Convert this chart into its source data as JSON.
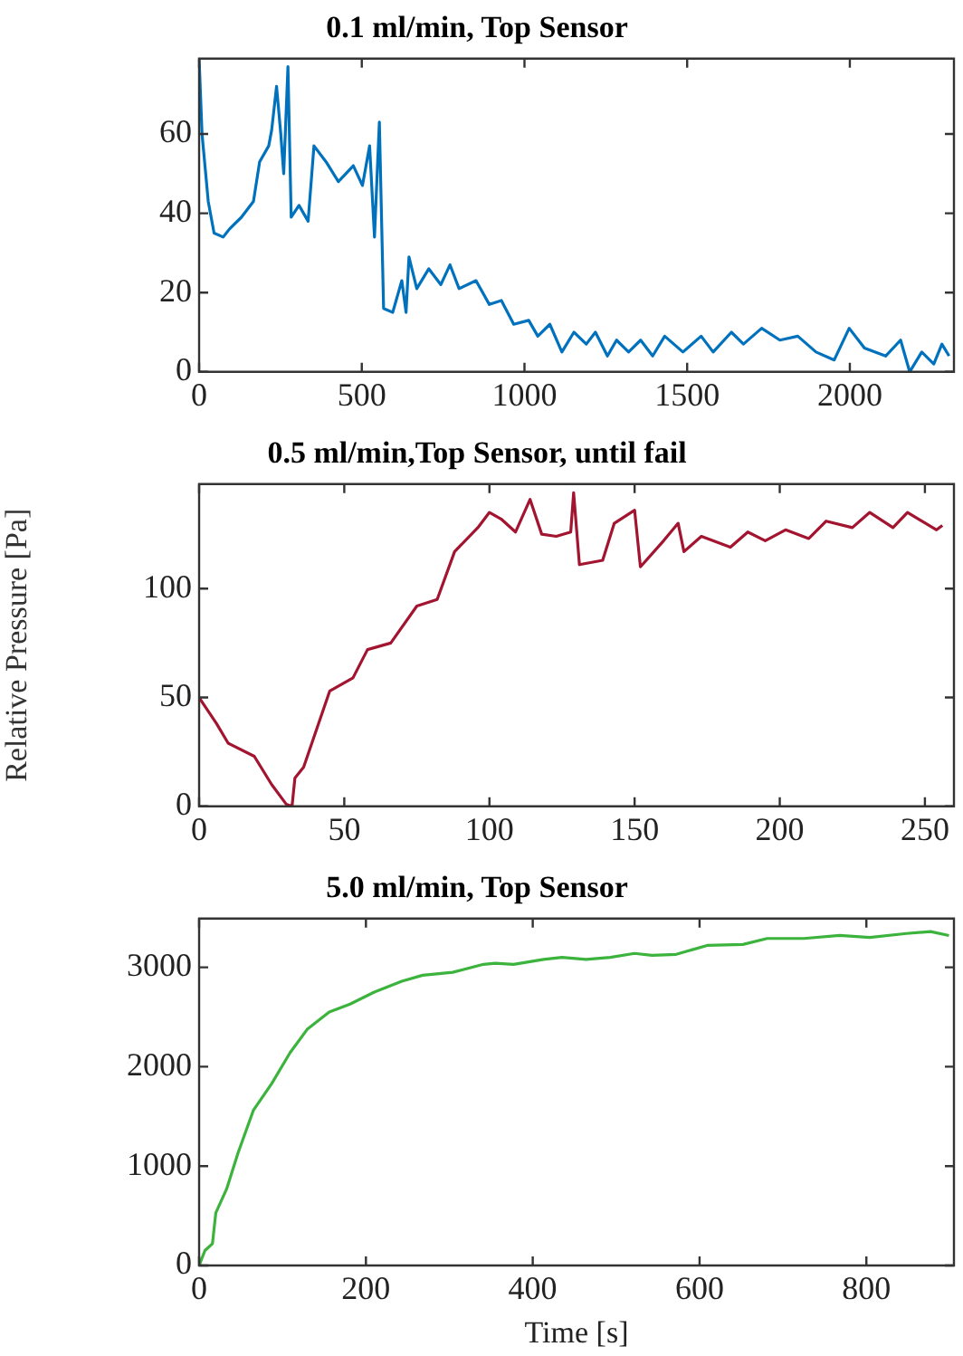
{
  "chart_data": [
    {
      "type": "line",
      "title": "0.1 ml/min, Top Sensor",
      "xlim": [
        0,
        2320
      ],
      "xticks": [
        0,
        500,
        1000,
        1500,
        2000
      ],
      "ylim": [
        0,
        79
      ],
      "yticks": [
        0,
        20,
        40,
        60
      ],
      "grid": false,
      "legend": false,
      "x": [
        0,
        9,
        28,
        46,
        74,
        93,
        130,
        167,
        186,
        214,
        223,
        238,
        251,
        260,
        273,
        283,
        307,
        335,
        353,
        390,
        428,
        474,
        502,
        524,
        539,
        554,
        567,
        595,
        623,
        636,
        645,
        669,
        706,
        743,
        771,
        799,
        851,
        892,
        929,
        967,
        1013,
        1041,
        1078,
        1115,
        1152,
        1190,
        1218,
        1255,
        1283,
        1320,
        1357,
        1394,
        1431,
        1487,
        1543,
        1580,
        1636,
        1673,
        1729,
        1785,
        1840,
        1896,
        1952,
        1998,
        2045,
        2110,
        2156,
        2184,
        2221,
        2258,
        2283,
        2305
      ],
      "series": [
        {
          "color": "#0072bd",
          "values": [
            79,
            60,
            43,
            35,
            34,
            36,
            39,
            43,
            53,
            57,
            61,
            72,
            60,
            50,
            77,
            39,
            42,
            38,
            57,
            53,
            48,
            52,
            47,
            57,
            34,
            63,
            16,
            15,
            23,
            15,
            29,
            21,
            26,
            22,
            27,
            21,
            23,
            17,
            18,
            12,
            13,
            9,
            12,
            5,
            10,
            7,
            10,
            4,
            8,
            5,
            8,
            4,
            9,
            5,
            9,
            5,
            10,
            7,
            11,
            8,
            9,
            5,
            3,
            11,
            6,
            4,
            8,
            0,
            5,
            2,
            7,
            4
          ]
        }
      ]
    },
    {
      "type": "line",
      "title": "0.5 ml/min,Top Sensor, until fail",
      "ylabel": "Relative Pressure [Pa]",
      "xlim": [
        0,
        260
      ],
      "xticks": [
        0,
        50,
        100,
        150,
        200,
        250
      ],
      "ylim": [
        0,
        148
      ],
      "yticks": [
        0,
        50,
        100
      ],
      "grid": false,
      "legend": false,
      "x": [
        0,
        6,
        10,
        19,
        25,
        30,
        32,
        33,
        36,
        45,
        53,
        58,
        66,
        75,
        82,
        88,
        96,
        100,
        104,
        109,
        114,
        118,
        123,
        128,
        129,
        131,
        139,
        143,
        150,
        152,
        160,
        165,
        167,
        173,
        183,
        189,
        195,
        202,
        210,
        216,
        225,
        231,
        239,
        244,
        254,
        256
      ],
      "series": [
        {
          "color": "#a2142f",
          "values": [
            50,
            38,
            29,
            23,
            10,
            1,
            0,
            13,
            18,
            53,
            59,
            72,
            75,
            92,
            95,
            117,
            128,
            135,
            132,
            126,
            141,
            125,
            124,
            126,
            144,
            111,
            113,
            130,
            136,
            110,
            122,
            130,
            117,
            124,
            119,
            126,
            122,
            127,
            123,
            131,
            128,
            135,
            128,
            135,
            127,
            129
          ]
        }
      ]
    },
    {
      "type": "line",
      "title": "5.0 ml/min, Top Sensor",
      "xlabel": "Time [s]",
      "xlim": [
        0,
        905
      ],
      "xticks": [
        0,
        200,
        400,
        600,
        800
      ],
      "ylim": [
        0,
        3490
      ],
      "yticks": [
        0,
        1000,
        2000,
        3000
      ],
      "grid": false,
      "legend": false,
      "x": [
        0,
        7,
        16,
        20,
        33,
        47,
        65,
        87,
        109,
        130,
        156,
        181,
        210,
        243,
        268,
        304,
        341,
        355,
        377,
        413,
        435,
        464,
        493,
        522,
        543,
        572,
        609,
        652,
        681,
        725,
        768,
        804,
        848,
        877,
        899
      ],
      "series": [
        {
          "color": "#3cb33c",
          "values": [
            0,
            150,
            220,
            530,
            770,
            1140,
            1560,
            1830,
            2140,
            2380,
            2550,
            2630,
            2750,
            2860,
            2920,
            2950,
            3030,
            3040,
            3030,
            3080,
            3100,
            3080,
            3100,
            3140,
            3120,
            3130,
            3220,
            3230,
            3290,
            3290,
            3320,
            3300,
            3340,
            3360,
            3320
          ]
        }
      ]
    }
  ]
}
